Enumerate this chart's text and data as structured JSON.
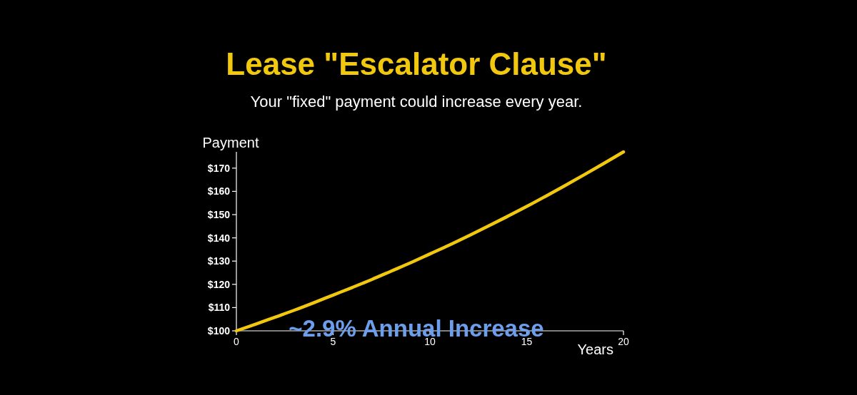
{
  "chart_data": {
    "type": "line",
    "title": "Lease \"Escalator Clause\"",
    "subtitle": "Your \"fixed\" payment could increase every year.",
    "xlabel": "Years",
    "ylabel": "Payment",
    "annotations": [
      "~2.9% Annual Increase"
    ],
    "x": [
      0,
      1,
      2,
      3,
      4,
      5,
      6,
      7,
      8,
      9,
      10,
      11,
      12,
      13,
      14,
      15,
      16,
      17,
      18,
      19,
      20
    ],
    "series": [
      {
        "color": "#f2c80f",
        "values": [
          100,
          102.9,
          105.9,
          108.9,
          112.1,
          115.4,
          118.7,
          122.1,
          125.7,
          129.3,
          133.1,
          136.9,
          140.9,
          145,
          149.2,
          153.5,
          158,
          162.6,
          167.3,
          172.1,
          177
        ]
      }
    ],
    "xlim": [
      0,
      20
    ],
    "ylim": [
      100,
      177
    ],
    "xticks": [
      0,
      5,
      10,
      15,
      20
    ],
    "yticks": [
      {
        "value": 100,
        "label": "$100"
      },
      {
        "value": 110,
        "label": "$110"
      },
      {
        "value": 120,
        "label": "$120"
      },
      {
        "value": 130,
        "label": "$130"
      },
      {
        "value": 140,
        "label": "$140"
      },
      {
        "value": 150,
        "label": "$150"
      },
      {
        "value": 160,
        "label": "$160"
      },
      {
        "value": 170,
        "label": "$170"
      }
    ],
    "line_style": "solid"
  }
}
